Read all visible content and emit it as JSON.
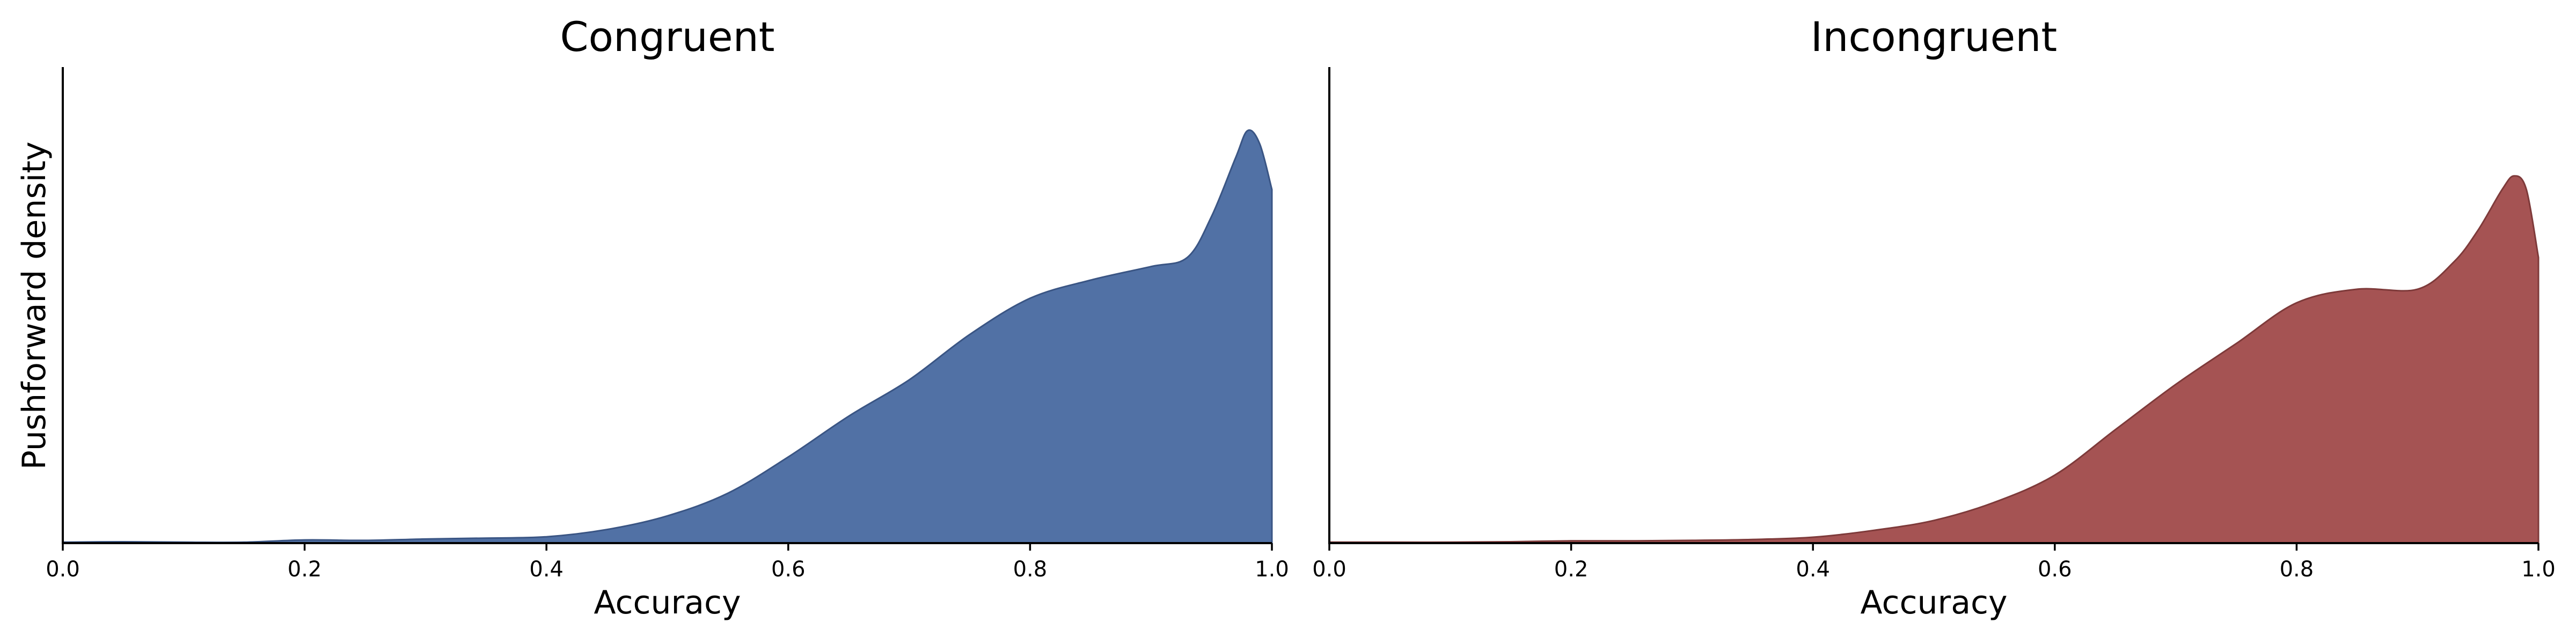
{
  "chart_data": [
    {
      "type": "area",
      "title": "Congruent",
      "xlabel": "Accuracy",
      "ylabel": "Pushforward density",
      "xlim": [
        0.0,
        1.0
      ],
      "ylim": [
        0.0,
        1.05
      ],
      "xticks": [
        "0.0",
        "0.2",
        "0.4",
        "0.6",
        "0.8",
        "1.0"
      ],
      "yticks": [],
      "grid": false,
      "color": "#5171a5",
      "edge_color": "#3a5584",
      "series": [
        {
          "x": [
            0.0,
            0.05,
            0.1,
            0.15,
            0.2,
            0.25,
            0.3,
            0.35,
            0.4,
            0.45,
            0.5,
            0.55,
            0.6,
            0.65,
            0.7,
            0.75,
            0.8,
            0.85,
            0.9,
            0.93,
            0.95,
            0.97,
            0.98,
            0.99,
            1.0
          ],
          "y": [
            0.002,
            0.003,
            0.002,
            0.002,
            0.007,
            0.006,
            0.009,
            0.011,
            0.014,
            0.03,
            0.06,
            0.11,
            0.19,
            0.28,
            0.36,
            0.46,
            0.54,
            0.58,
            0.61,
            0.63,
            0.72,
            0.85,
            0.91,
            0.88,
            0.78
          ]
        }
      ]
    },
    {
      "type": "area",
      "title": "Incongruent",
      "xlabel": "Accuracy",
      "ylabel": "",
      "xlim": [
        0.0,
        1.0
      ],
      "ylim": [
        0.0,
        1.05
      ],
      "xticks": [
        "0.0",
        "0.2",
        "0.4",
        "0.6",
        "0.8",
        "1.0"
      ],
      "yticks": [],
      "grid": false,
      "color": "#a55353",
      "edge_color": "#7e3a3a",
      "series": [
        {
          "x": [
            0.0,
            0.05,
            0.1,
            0.15,
            0.2,
            0.25,
            0.3,
            0.35,
            0.4,
            0.45,
            0.5,
            0.55,
            0.6,
            0.65,
            0.7,
            0.75,
            0.8,
            0.85,
            0.9,
            0.93,
            0.95,
            0.97,
            0.98,
            0.99,
            1.0
          ],
          "y": [
            0.002,
            0.002,
            0.002,
            0.003,
            0.005,
            0.005,
            0.006,
            0.008,
            0.013,
            0.028,
            0.05,
            0.09,
            0.15,
            0.25,
            0.35,
            0.44,
            0.53,
            0.56,
            0.56,
            0.62,
            0.69,
            0.78,
            0.81,
            0.78,
            0.63
          ]
        }
      ]
    }
  ]
}
